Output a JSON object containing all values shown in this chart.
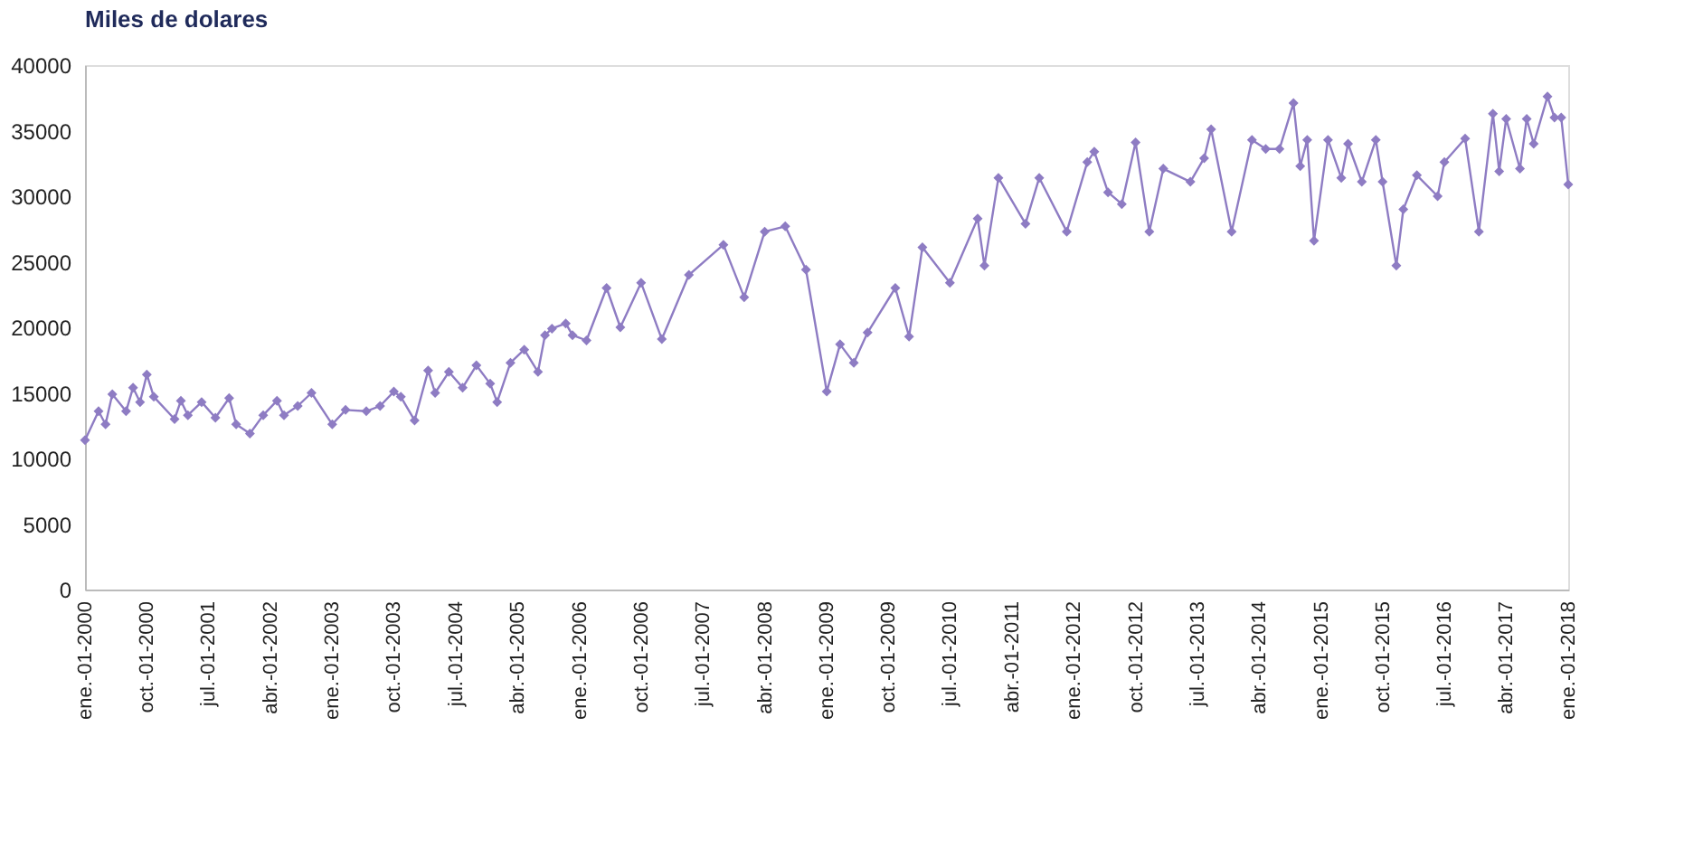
{
  "chart_data": {
    "type": "line",
    "title": "Miles de dolares",
    "marker": "diamond",
    "line_style": "solid",
    "grid": false,
    "legend": false,
    "xlim": [
      "2000-01",
      "2018-01"
    ],
    "xticks": [
      {
        "value": "2000-01",
        "label": "ene.-01-2000"
      },
      {
        "value": "2000-10",
        "label": "oct.-01-2000"
      },
      {
        "value": "2001-07",
        "label": "jul.-01-2001"
      },
      {
        "value": "2002-04",
        "label": "abr.-01-2002"
      },
      {
        "value": "2003-01",
        "label": "ene.-01-2003"
      },
      {
        "value": "2003-10",
        "label": "oct.-01-2003"
      },
      {
        "value": "2004-07",
        "label": "jul.-01-2004"
      },
      {
        "value": "2005-04",
        "label": "abr.-01-2005"
      },
      {
        "value": "2006-01",
        "label": "ene.-01-2006"
      },
      {
        "value": "2006-10",
        "label": "oct.-01-2006"
      },
      {
        "value": "2007-07",
        "label": "jul.-01-2007"
      },
      {
        "value": "2008-04",
        "label": "abr.-01-2008"
      },
      {
        "value": "2009-01",
        "label": "ene.-01-2009"
      },
      {
        "value": "2009-10",
        "label": "oct.-01-2009"
      },
      {
        "value": "2010-07",
        "label": "jul.-01-2010"
      },
      {
        "value": "2011-04",
        "label": "abr.-01-2011"
      },
      {
        "value": "2012-01",
        "label": "ene.-01-2012"
      },
      {
        "value": "2012-10",
        "label": "oct.-01-2012"
      },
      {
        "value": "2013-07",
        "label": "jul.-01-2013"
      },
      {
        "value": "2014-04",
        "label": "abr.-01-2014"
      },
      {
        "value": "2015-01",
        "label": "ene.-01-2015"
      },
      {
        "value": "2015-10",
        "label": "oct.-01-2015"
      },
      {
        "value": "2016-07",
        "label": "jul.-01-2016"
      },
      {
        "value": "2017-04",
        "label": "abr.-01-2017"
      },
      {
        "value": "2018-01",
        "label": "ene.-01-2018"
      }
    ],
    "ylim": [
      0,
      40000
    ],
    "yticks": [
      0,
      5000,
      10000,
      15000,
      20000,
      25000,
      30000,
      35000,
      40000
    ],
    "series": [
      {
        "color": "#8e7cc3",
        "x": [
          "2000-01",
          "2000-03",
          "2000-04",
          "2000-05",
          "2000-07",
          "2000-08",
          "2000-09",
          "2000-10",
          "2000-11",
          "2001-02",
          "2001-03",
          "2001-04",
          "2001-06",
          "2001-08",
          "2001-10",
          "2001-11",
          "2002-01",
          "2002-03",
          "2002-05",
          "2002-06",
          "2002-08",
          "2002-10",
          "2003-01",
          "2003-03",
          "2003-06",
          "2003-08",
          "2003-10",
          "2003-11",
          "2004-01",
          "2004-03",
          "2004-04",
          "2004-06",
          "2004-08",
          "2004-10",
          "2004-12",
          "2005-01",
          "2005-03",
          "2005-05",
          "2005-07",
          "2005-08",
          "2005-09",
          "2005-11",
          "2005-12",
          "2006-02",
          "2006-05",
          "2006-07",
          "2006-10",
          "2007-01",
          "2007-05",
          "2007-10",
          "2008-01",
          "2008-04",
          "2008-07",
          "2008-10",
          "2009-01",
          "2009-03",
          "2009-05",
          "2009-07",
          "2009-11",
          "2010-01",
          "2010-03",
          "2010-07",
          "2010-11",
          "2010-12",
          "2011-02",
          "2011-06",
          "2011-08",
          "2011-12",
          "2012-03",
          "2012-04",
          "2012-06",
          "2012-08",
          "2012-10",
          "2012-12",
          "2013-02",
          "2013-06",
          "2013-08",
          "2013-09",
          "2013-12",
          "2014-03",
          "2014-05",
          "2014-07",
          "2014-09",
          "2014-10",
          "2014-11",
          "2014-12",
          "2015-02",
          "2015-04",
          "2015-05",
          "2015-07",
          "2015-09",
          "2015-10",
          "2015-12",
          "2016-01",
          "2016-03",
          "2016-06",
          "2016-07",
          "2016-10",
          "2016-12",
          "2017-02",
          "2017-03",
          "2017-04",
          "2017-06",
          "2017-07",
          "2017-08",
          "2017-10",
          "2017-11",
          "2017-12",
          "2018-01"
        ],
        "values": [
          11400,
          13600,
          12600,
          14900,
          13600,
          15400,
          14300,
          16400,
          14700,
          13000,
          14400,
          13300,
          14300,
          13100,
          14600,
          12600,
          11900,
          13300,
          14400,
          13300,
          14000,
          15000,
          12600,
          13700,
          13600,
          14000,
          15100,
          14700,
          12900,
          16700,
          15000,
          16600,
          15400,
          17100,
          15700,
          14300,
          17300,
          18300,
          16600,
          19400,
          19900,
          20300,
          19400,
          19000,
          23000,
          20000,
          23400,
          19100,
          24000,
          26300,
          22300,
          27300,
          27700,
          24400,
          15100,
          18700,
          17300,
          19600,
          23000,
          19300,
          26100,
          23400,
          28300,
          24700,
          31400,
          27900,
          31400,
          27300,
          32600,
          33400,
          30300,
          29400,
          34100,
          27300,
          32100,
          31100,
          32900,
          35100,
          27300,
          34300,
          33600,
          33600,
          37100,
          32300,
          34300,
          26600,
          34300,
          31400,
          34000,
          31100,
          34300,
          31100,
          24700,
          29000,
          31600,
          30000,
          32600,
          34400,
          27300,
          36300,
          31900,
          35900,
          32100,
          35900,
          34000,
          37600,
          36000,
          36000,
          30900
        ]
      }
    ]
  }
}
